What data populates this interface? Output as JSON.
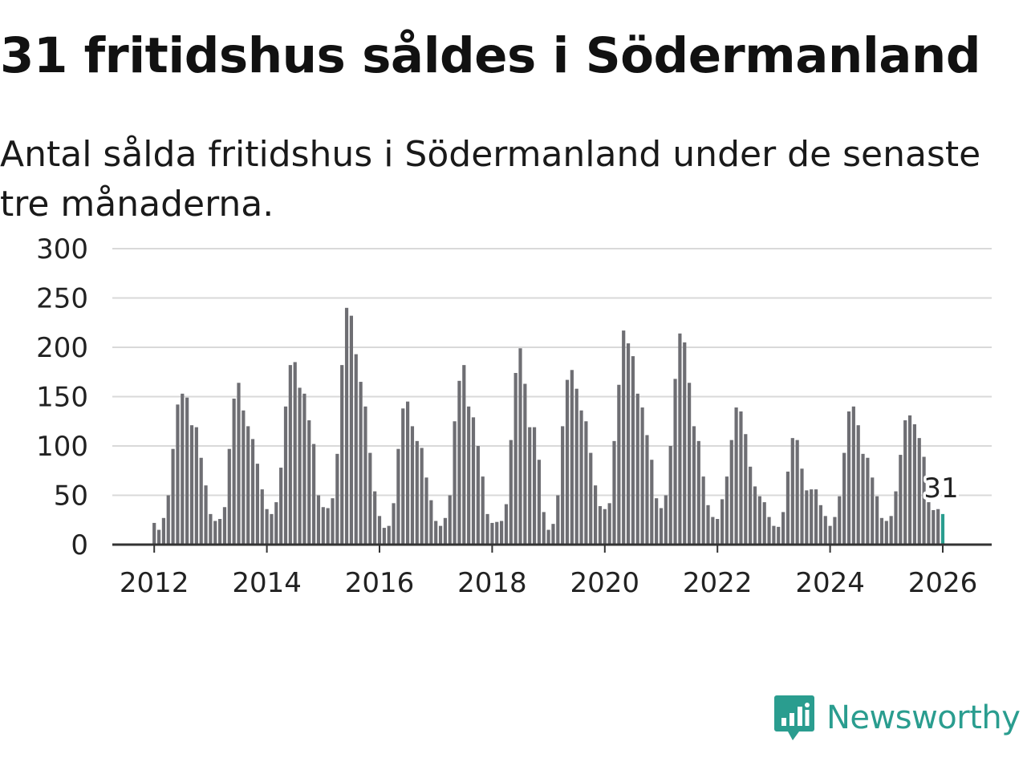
{
  "header": {
    "title": "31 fritidshus såldes i Södermanland",
    "subtitle": "Antal sålda fritidshus i Södermanland under de senaste tre månaderna."
  },
  "brand": {
    "name": "Newsworthy",
    "color": "#2a9d8f"
  },
  "colors": {
    "bar": "#6e6e73",
    "highlight": "#2a9d8f",
    "grid": "#d9d9d9",
    "axis": "#333333"
  },
  "chart_data": {
    "type": "bar",
    "title": "31 fritidshus såldes i Södermanland",
    "xlabel": "",
    "ylabel": "",
    "ylim": [
      0,
      300
    ],
    "yticks": [
      "0",
      "50",
      "100",
      "150",
      "200",
      "250",
      "300"
    ],
    "xticks": [
      "2012",
      "2014",
      "2016",
      "2018",
      "2020",
      "2022",
      "2024",
      "2026"
    ],
    "start": "2012-01",
    "frequency": "monthly",
    "values": [
      22,
      15,
      27,
      50,
      97,
      142,
      153,
      149,
      121,
      119,
      88,
      60,
      31,
      24,
      26,
      38,
      97,
      148,
      164,
      136,
      120,
      107,
      82,
      56,
      36,
      31,
      43,
      78,
      140,
      182,
      185,
      159,
      153,
      126,
      102,
      50,
      38,
      37,
      47,
      92,
      182,
      240,
      232,
      193,
      165,
      140,
      93,
      54,
      29,
      17,
      19,
      42,
      97,
      138,
      145,
      120,
      105,
      98,
      68,
      45,
      24,
      19,
      27,
      50,
      125,
      166,
      182,
      140,
      129,
      100,
      69,
      31,
      22,
      23,
      24,
      41,
      106,
      174,
      199,
      163,
      119,
      119,
      86,
      33,
      15,
      21,
      50,
      120,
      167,
      177,
      158,
      136,
      125,
      93,
      60,
      39,
      36,
      42,
      105,
      162,
      217,
      204,
      191,
      153,
      139,
      111,
      86,
      47,
      37,
      50,
      100,
      168,
      214,
      205,
      164,
      120,
      105,
      69,
      40,
      28,
      26,
      46,
      69,
      106,
      139,
      135,
      112,
      79,
      59,
      49,
      43,
      28,
      19,
      18,
      33,
      74,
      108,
      106,
      77,
      55,
      56,
      56,
      40,
      29,
      19,
      28,
      49,
      93,
      135,
      140,
      121,
      92,
      88,
      68,
      49,
      27,
      24,
      29,
      54,
      91,
      126,
      131,
      122,
      108,
      89,
      43,
      35,
      36,
      31
    ],
    "highlight_label": "31"
  }
}
